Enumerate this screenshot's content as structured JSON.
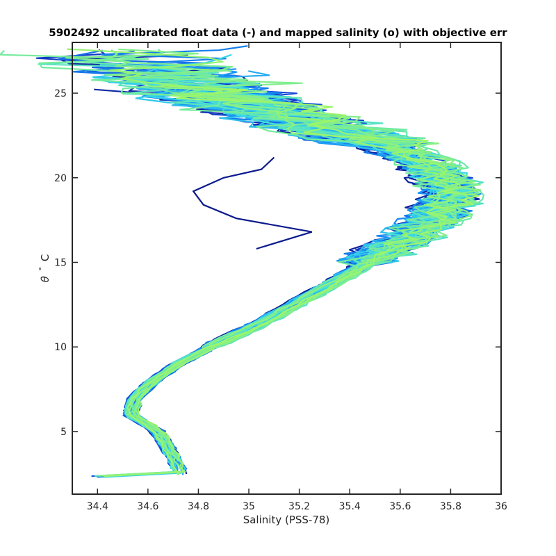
{
  "chart_data": {
    "type": "line",
    "title": "5902492 uncalibrated float data (-) and mapped salinity (o) with objective err",
    "xlabel": "Salinity (PSS-78)",
    "ylabel_symbol": "θ",
    "ylabel_unit": "C",
    "xlim": [
      34.3,
      36.0
    ],
    "ylim": [
      1.3,
      28.0
    ],
    "x_ticks": [
      34.4,
      34.6,
      34.8,
      35.0,
      35.2,
      35.4,
      35.6,
      35.8,
      36.0
    ],
    "x_tick_labels": [
      "34.4",
      "34.6",
      "34.8",
      "35",
      "35.2",
      "35.4",
      "35.6",
      "35.8",
      "36"
    ],
    "y_ticks": [
      5,
      10,
      15,
      20,
      25
    ],
    "y_tick_labels": [
      "5",
      "10",
      "15",
      "20",
      "25"
    ],
    "grid": false,
    "colormap": "dark blue to light green (profile order)",
    "color_start": "#0a1a8c",
    "color_end": "#9cf56a",
    "profile_count": 60,
    "approx_profile_envelope": {
      "deep_segment": [
        {
          "theta": 2.4,
          "salinity": 34.73
        },
        {
          "theta": 3.5,
          "salinity": 34.7
        },
        {
          "theta": 5.0,
          "salinity": 34.64
        },
        {
          "theta": 6.0,
          "salinity": 34.53
        },
        {
          "theta": 7.0,
          "salinity": 34.55
        },
        {
          "theta": 8.0,
          "salinity": 34.62
        },
        {
          "theta": 9.0,
          "salinity": 34.72
        },
        {
          "theta": 10.0,
          "salinity": 34.85
        },
        {
          "theta": 11.0,
          "salinity": 35.0
        },
        {
          "theta": 12.0,
          "salinity": 35.13
        },
        {
          "theta": 13.0,
          "salinity": 35.25
        },
        {
          "theta": 14.0,
          "salinity": 35.37
        },
        {
          "theta": 15.0,
          "salinity": 35.48
        },
        {
          "theta": 16.0,
          "salinity": 35.6
        },
        {
          "theta": 17.0,
          "salinity": 35.7
        },
        {
          "theta": 18.0,
          "salinity": 35.78
        },
        {
          "theta": 19.0,
          "salinity": 35.82
        }
      ],
      "upper_segment": [
        {
          "theta": 19.0,
          "salinity": 35.82
        },
        {
          "theta": 20.0,
          "salinity": 35.78
        },
        {
          "theta": 21.0,
          "salinity": 35.7
        },
        {
          "theta": 22.0,
          "salinity": 35.55
        },
        {
          "theta": 23.0,
          "salinity": 35.3
        },
        {
          "theta": 24.0,
          "salinity": 35.05
        },
        {
          "theta": 25.0,
          "salinity": 34.8
        },
        {
          "theta": 26.0,
          "salinity": 34.6
        },
        {
          "theta": 26.7,
          "salinity": 34.4
        }
      ],
      "anomalous_profile": [
        {
          "theta": 15.8,
          "salinity": 35.03
        },
        {
          "theta": 16.8,
          "salinity": 35.25
        },
        {
          "theta": 17.6,
          "salinity": 34.95
        },
        {
          "theta": 18.4,
          "salinity": 34.82
        },
        {
          "theta": 19.2,
          "salinity": 34.78
        },
        {
          "theta": 20.0,
          "salinity": 34.9
        },
        {
          "theta": 20.5,
          "salinity": 35.05
        },
        {
          "theta": 21.2,
          "salinity": 35.1
        }
      ]
    }
  }
}
